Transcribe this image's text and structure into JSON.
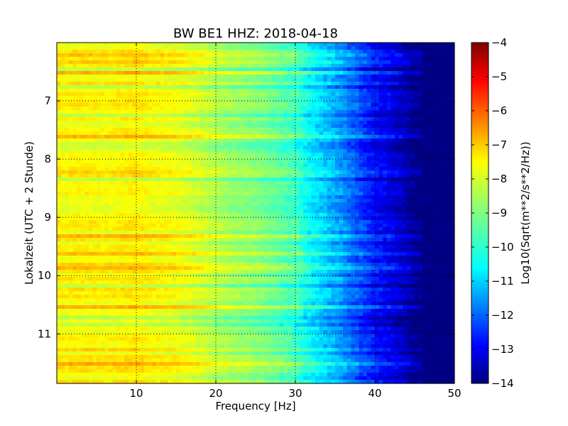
{
  "chart_data": {
    "type": "heatmap",
    "title": "BW BE1 HHZ: 2018-04-18",
    "xlabel": "Frequency [Hz]",
    "ylabel": "Lokalzeit (UTC + 2 Stunde)",
    "colorbar_label": "Log10(Sqrt(m**2/s**2/Hz))",
    "xlim": [
      0,
      50
    ],
    "ylim": [
      11.85,
      6.0
    ],
    "x_ticks": [
      10,
      20,
      30,
      40,
      50
    ],
    "y_ticks": [
      7,
      8,
      9,
      10,
      11
    ],
    "colorbar_range": [
      -14,
      -4
    ],
    "colorbar_ticks": [
      -4,
      -5,
      -6,
      -7,
      -8,
      -9,
      -10,
      -11,
      -12,
      -13,
      -14
    ],
    "colormap": "jet",
    "grid": true,
    "grid_style": "dotted",
    "spectral_profile": {
      "frequency_hz": [
        0,
        1,
        2,
        4,
        6,
        8,
        10,
        12,
        15,
        18,
        20,
        22,
        25,
        28,
        30,
        32,
        34,
        36,
        38,
        40,
        42,
        44,
        45,
        46,
        50
      ],
      "log10_amplitude": [
        -7.6,
        -7.8,
        -7.7,
        -7.7,
        -7.8,
        -7.7,
        -7.6,
        -7.8,
        -7.9,
        -8.2,
        -8.5,
        -8.7,
        -8.9,
        -9.3,
        -9.6,
        -10.3,
        -10.8,
        -11.3,
        -12.0,
        -12.6,
        -13.0,
        -13.5,
        -13.8,
        -14.0,
        -14.0
      ]
    }
  }
}
